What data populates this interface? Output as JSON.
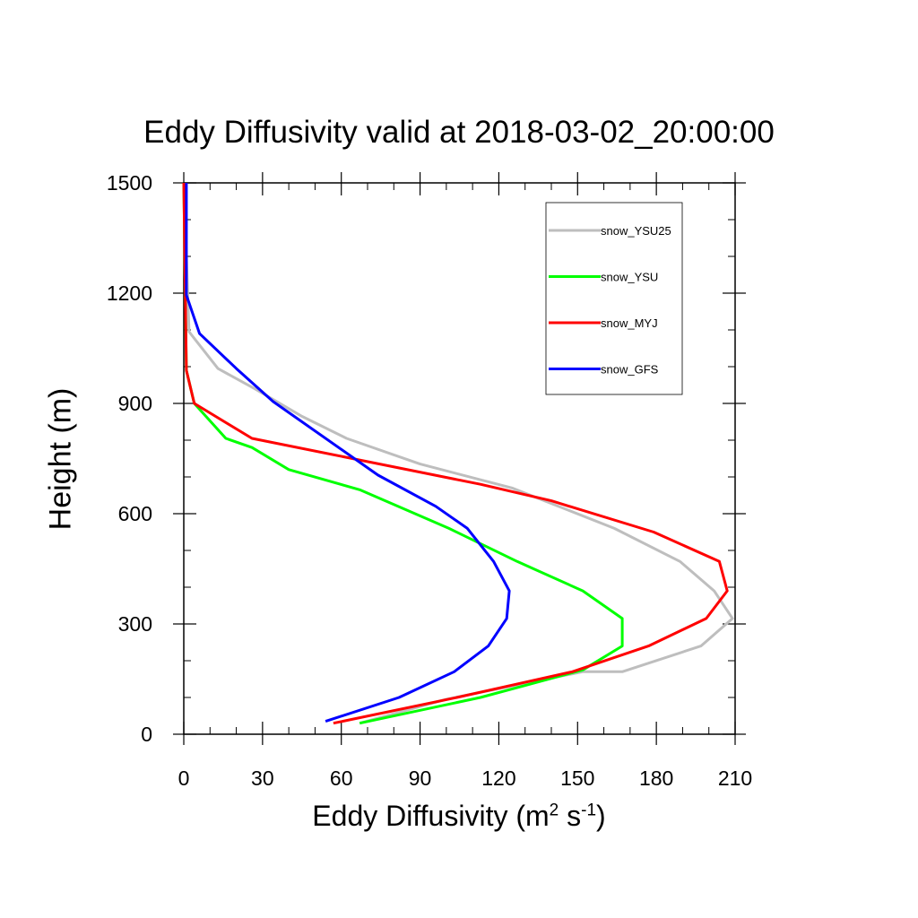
{
  "chart_data": {
    "type": "line",
    "title": "Eddy Diffusivity valid at 2018-03-02_20:00:00",
    "xlabel_base": "Eddy Diffusivity (m",
    "xlabel_sup1": "2",
    "xlabel_mid": " s",
    "xlabel_sup2": "-1",
    "xlabel_end": ")",
    "ylabel": "Height (m)",
    "xlim": [
      0,
      210
    ],
    "ylim": [
      0,
      1500
    ],
    "xticks": [
      0,
      30,
      60,
      90,
      120,
      150,
      180,
      210
    ],
    "yticks": [
      0,
      300,
      600,
      900,
      1200,
      1500
    ],
    "x_minor_step": 10,
    "y_minor_step": 100,
    "grid": false,
    "legend_position": "top-right",
    "series": [
      {
        "name": "snow_YSU25",
        "color": "#bebebe",
        "points": [
          [
            67,
            30
          ],
          [
            100,
            95
          ],
          [
            152,
            170
          ],
          [
            167,
            170
          ],
          [
            197,
            240
          ],
          [
            209,
            315
          ],
          [
            202,
            390
          ],
          [
            189,
            470
          ],
          [
            164,
            560
          ],
          [
            125,
            670
          ],
          [
            90,
            735
          ],
          [
            62,
            805
          ],
          [
            45,
            865
          ],
          [
            27,
            940
          ],
          [
            13,
            995
          ],
          [
            2,
            1095
          ],
          [
            0,
            1500
          ]
        ]
      },
      {
        "name": "snow_YSU",
        "color": "#00ff00",
        "points": [
          [
            67,
            30
          ],
          [
            113,
            100
          ],
          [
            152,
            175
          ],
          [
            167,
            240
          ],
          [
            167,
            315
          ],
          [
            152,
            390
          ],
          [
            127,
            470
          ],
          [
            101,
            560
          ],
          [
            67,
            665
          ],
          [
            40,
            720
          ],
          [
            26,
            780
          ],
          [
            16,
            805
          ],
          [
            4,
            900
          ],
          [
            1,
            990
          ],
          [
            0,
            1500
          ]
        ]
      },
      {
        "name": "snow_MYJ",
        "color": "#ff0000",
        "points": [
          [
            57,
            30
          ],
          [
            104,
            100
          ],
          [
            148,
            170
          ],
          [
            177,
            240
          ],
          [
            199,
            315
          ],
          [
            207,
            390
          ],
          [
            204,
            470
          ],
          [
            179,
            550
          ],
          [
            140,
            635
          ],
          [
            113,
            680
          ],
          [
            26,
            805
          ],
          [
            4,
            900
          ],
          [
            1,
            990
          ],
          [
            0,
            1500
          ]
        ]
      },
      {
        "name": "snow_GFS",
        "color": "#0000ff",
        "points": [
          [
            54,
            35
          ],
          [
            82,
            100
          ],
          [
            103,
            170
          ],
          [
            116,
            240
          ],
          [
            123,
            315
          ],
          [
            124,
            390
          ],
          [
            118,
            470
          ],
          [
            108,
            560
          ],
          [
            96,
            620
          ],
          [
            74,
            705
          ],
          [
            34,
            905
          ],
          [
            20,
            995
          ],
          [
            6,
            1090
          ],
          [
            1,
            1195
          ],
          [
            1,
            1500
          ]
        ]
      }
    ]
  }
}
